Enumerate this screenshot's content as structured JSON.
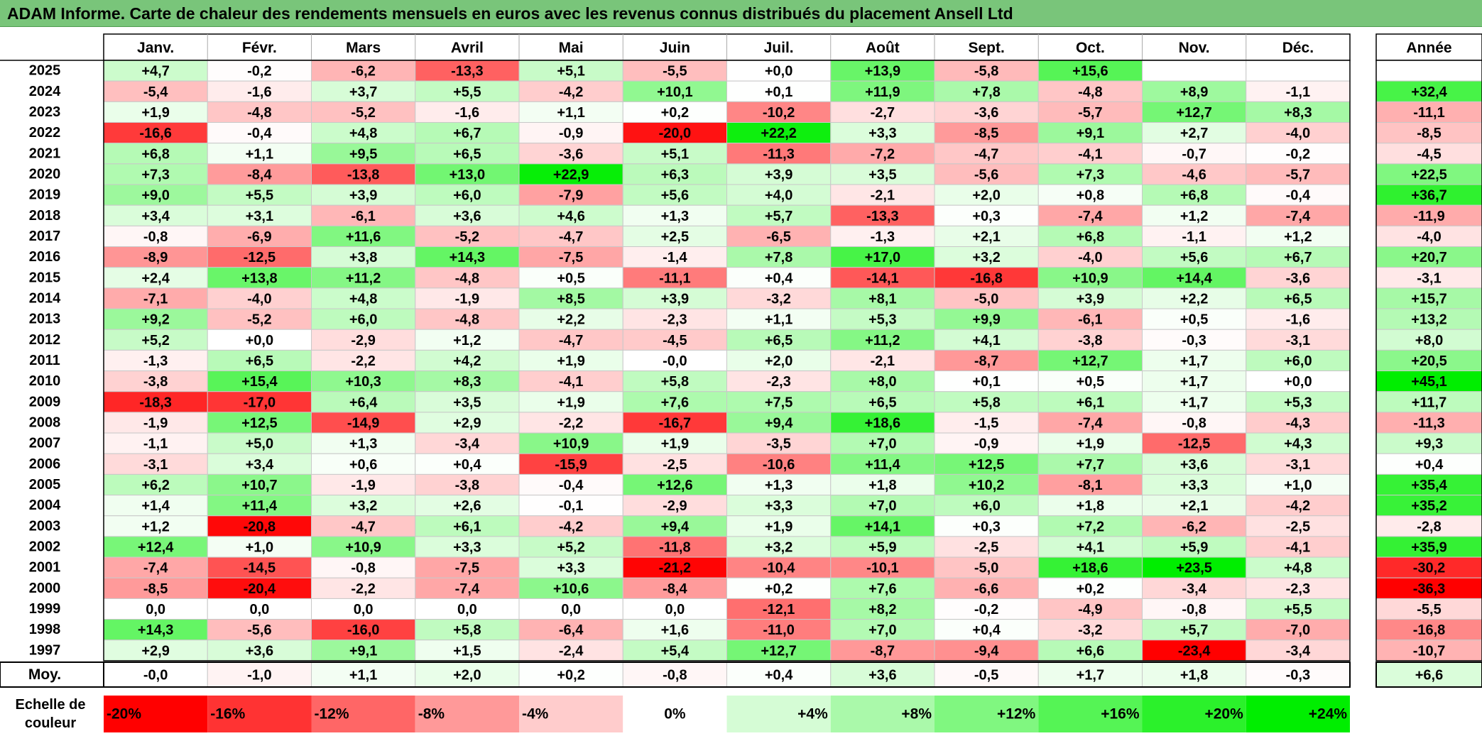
{
  "title": "ADAM Informe. Carte de chaleur des rendements mensuels en euros avec les revenus connus distribués du placement Ansell Ltd",
  "chart_data": {
    "type": "heatmap",
    "title": "ADAM Informe. Carte de chaleur des rendements mensuels en euros avec les revenus connus distribués du placement Ansell Ltd",
    "columns": [
      "Janv.",
      "Févr.",
      "Mars",
      "Avril",
      "Mai",
      "Juin",
      "Juil.",
      "Août",
      "Sept.",
      "Oct.",
      "Nov.",
      "Déc."
    ],
    "year_column_label": "Année",
    "rows": [
      {
        "year": "2025",
        "values": [
          "+4,7",
          "-0,2",
          "-6,2",
          "-13,3",
          "+5,1",
          "-5,5",
          "+0,0",
          "+13,9",
          "-5,8",
          "+15,6",
          "",
          ""
        ],
        "annual": ""
      },
      {
        "year": "2024",
        "values": [
          "-5,4",
          "-1,6",
          "+3,7",
          "+5,5",
          "-4,2",
          "+10,1",
          "+0,1",
          "+11,9",
          "+7,8",
          "-4,8",
          "+8,9",
          "-1,1"
        ],
        "annual": "+32,4"
      },
      {
        "year": "2023",
        "values": [
          "+1,9",
          "-4,8",
          "-5,2",
          "-1,6",
          "+1,1",
          "+0,2",
          "-10,2",
          "-2,7",
          "-3,6",
          "-5,7",
          "+12,7",
          "+8,3"
        ],
        "annual": "-11,1"
      },
      {
        "year": "2022",
        "values": [
          "-16,6",
          "-0,4",
          "+4,8",
          "+6,7",
          "-0,9",
          "-20,0",
          "+22,2",
          "+3,3",
          "-8,5",
          "+9,1",
          "+2,7",
          "-4,0"
        ],
        "annual": "-8,5"
      },
      {
        "year": "2021",
        "values": [
          "+6,8",
          "+1,1",
          "+9,5",
          "+6,5",
          "-3,6",
          "+5,1",
          "-11,3",
          "-7,2",
          "-4,7",
          "-4,1",
          "-0,7",
          "-0,2"
        ],
        "annual": "-4,5"
      },
      {
        "year": "2020",
        "values": [
          "+7,3",
          "-8,4",
          "-13,8",
          "+13,0",
          "+22,9",
          "+6,3",
          "+3,9",
          "+3,5",
          "-5,6",
          "+7,3",
          "-4,6",
          "-5,7"
        ],
        "annual": "+22,5"
      },
      {
        "year": "2019",
        "values": [
          "+9,0",
          "+5,5",
          "+3,9",
          "+6,0",
          "-7,9",
          "+5,6",
          "+4,0",
          "-2,1",
          "+2,0",
          "+0,8",
          "+6,8",
          "-0,4"
        ],
        "annual": "+36,7"
      },
      {
        "year": "2018",
        "values": [
          "+3,4",
          "+3,1",
          "-6,1",
          "+3,6",
          "+4,6",
          "+1,3",
          "+5,7",
          "-13,3",
          "+0,3",
          "-7,4",
          "+1,2",
          "-7,4"
        ],
        "annual": "-11,9"
      },
      {
        "year": "2017",
        "values": [
          "-0,8",
          "-6,9",
          "+11,6",
          "-5,2",
          "-4,7",
          "+2,5",
          "-6,5",
          "-1,3",
          "+2,1",
          "+6,8",
          "-1,1",
          "+1,2"
        ],
        "annual": "-4,0"
      },
      {
        "year": "2016",
        "values": [
          "-8,9",
          "-12,5",
          "+3,8",
          "+14,3",
          "-7,5",
          "-1,4",
          "+7,8",
          "+17,0",
          "+3,2",
          "-4,0",
          "+5,6",
          "+6,7"
        ],
        "annual": "+20,7"
      },
      {
        "year": "2015",
        "values": [
          "+2,4",
          "+13,8",
          "+11,2",
          "-4,8",
          "+0,5",
          "-11,1",
          "+0,4",
          "-14,1",
          "-16,8",
          "+10,9",
          "+14,4",
          "-3,6"
        ],
        "annual": "-3,1"
      },
      {
        "year": "2014",
        "values": [
          "-7,1",
          "-4,0",
          "+4,8",
          "-1,9",
          "+8,5",
          "+3,9",
          "-3,2",
          "+8,1",
          "-5,0",
          "+3,9",
          "+2,2",
          "+6,5"
        ],
        "annual": "+15,7"
      },
      {
        "year": "2013",
        "values": [
          "+9,2",
          "-5,2",
          "+6,0",
          "-4,8",
          "+2,2",
          "-2,3",
          "+1,1",
          "+5,3",
          "+9,9",
          "-6,1",
          "+0,5",
          "-1,6"
        ],
        "annual": "+13,2"
      },
      {
        "year": "2012",
        "values": [
          "+5,2",
          "+0,0",
          "-2,9",
          "+1,2",
          "-4,7",
          "-4,5",
          "+6,5",
          "+11,2",
          "+4,1",
          "-3,8",
          "-0,3",
          "-3,1"
        ],
        "annual": "+8,0"
      },
      {
        "year": "2011",
        "values": [
          "-1,3",
          "+6,5",
          "-2,2",
          "+4,2",
          "+1,9",
          "-0,0",
          "+2,0",
          "-2,1",
          "-8,7",
          "+12,7",
          "+1,7",
          "+6,0"
        ],
        "annual": "+20,5"
      },
      {
        "year": "2010",
        "values": [
          "-3,8",
          "+15,4",
          "+10,3",
          "+8,3",
          "-4,1",
          "+5,8",
          "-2,3",
          "+8,0",
          "+0,1",
          "+0,5",
          "+1,7",
          "+0,0"
        ],
        "annual": "+45,1"
      },
      {
        "year": "2009",
        "values": [
          "-18,3",
          "-17,0",
          "+6,4",
          "+3,5",
          "+1,9",
          "+7,6",
          "+7,5",
          "+6,5",
          "+5,8",
          "+6,1",
          "+1,7",
          "+5,3"
        ],
        "annual": "+11,7"
      },
      {
        "year": "2008",
        "values": [
          "-1,9",
          "+12,5",
          "-14,9",
          "+2,9",
          "-2,2",
          "-16,7",
          "+9,4",
          "+18,6",
          "-1,5",
          "-7,4",
          "-0,8",
          "-4,3"
        ],
        "annual": "-11,3"
      },
      {
        "year": "2007",
        "values": [
          "-1,1",
          "+5,0",
          "+1,3",
          "-3,4",
          "+10,9",
          "+1,9",
          "-3,5",
          "+7,0",
          "-0,9",
          "+1,9",
          "-12,5",
          "+4,3"
        ],
        "annual": "+9,3"
      },
      {
        "year": "2006",
        "values": [
          "-3,1",
          "+3,4",
          "+0,6",
          "+0,4",
          "-15,9",
          "-2,5",
          "-10,6",
          "+11,4",
          "+12,5",
          "+7,7",
          "+3,6",
          "-3,1"
        ],
        "annual": "+0,4"
      },
      {
        "year": "2005",
        "values": [
          "+6,2",
          "+10,7",
          "-1,9",
          "-3,8",
          "-0,4",
          "+12,6",
          "+1,3",
          "+1,8",
          "+10,2",
          "-8,1",
          "+3,3",
          "+1,0"
        ],
        "annual": "+35,4"
      },
      {
        "year": "2004",
        "values": [
          "+1,4",
          "+11,4",
          "+3,2",
          "+2,6",
          "-0,1",
          "-2,9",
          "+3,3",
          "+7,0",
          "+6,0",
          "+1,8",
          "+2,1",
          "-4,2"
        ],
        "annual": "+35,2"
      },
      {
        "year": "2003",
        "values": [
          "+1,2",
          "-20,8",
          "-4,7",
          "+6,1",
          "-4,2",
          "+9,4",
          "+1,9",
          "+14,1",
          "+0,3",
          "+7,2",
          "-6,2",
          "-2,5"
        ],
        "annual": "-2,8"
      },
      {
        "year": "2002",
        "values": [
          "+12,4",
          "+1,0",
          "+10,9",
          "+3,3",
          "+5,2",
          "-11,8",
          "+3,2",
          "+5,9",
          "-2,5",
          "+4,1",
          "+5,9",
          "-4,1"
        ],
        "annual": "+35,9"
      },
      {
        "year": "2001",
        "values": [
          "-7,4",
          "-14,5",
          "-0,8",
          "-7,5",
          "+3,3",
          "-21,2",
          "-10,4",
          "-10,1",
          "-5,0",
          "+18,6",
          "+23,5",
          "+4,8"
        ],
        "annual": "-30,2"
      },
      {
        "year": "2000",
        "values": [
          "-8,5",
          "-20,4",
          "-2,2",
          "-7,4",
          "+10,6",
          "-8,4",
          "+0,2",
          "+7,6",
          "-6,6",
          "+0,2",
          "-3,4",
          "-2,3"
        ],
        "annual": "-36,3"
      },
      {
        "year": "1999",
        "values": [
          "0,0",
          "0,0",
          "0,0",
          "0,0",
          "0,0",
          "0,0",
          "-12,1",
          "+8,2",
          "-0,2",
          "-4,9",
          "-0,8",
          "+5,5"
        ],
        "annual": "-5,5"
      },
      {
        "year": "1998",
        "values": [
          "+14,3",
          "-5,6",
          "-16,0",
          "+5,8",
          "-6,4",
          "+1,6",
          "-11,0",
          "+7,0",
          "+0,4",
          "-3,2",
          "+5,7",
          "-7,0"
        ],
        "annual": "-16,8"
      },
      {
        "year": "1997",
        "values": [
          "+2,9",
          "+3,6",
          "+9,1",
          "+1,5",
          "-2,4",
          "+5,4",
          "+12,7",
          "-8,7",
          "-9,4",
          "+6,6",
          "-23,4",
          "-3,4"
        ],
        "annual": "-10,7"
      }
    ],
    "average": {
      "label": "Moy.",
      "values": [
        "-0,0",
        "-1,0",
        "+1,1",
        "+2,0",
        "+0,2",
        "-0,8",
        "+0,4",
        "+3,6",
        "-0,5",
        "+1,7",
        "+1,8",
        "-0,3"
      ],
      "annual": "+6,6"
    },
    "scale": {
      "label_line1": "Echelle de",
      "label_line2": "couleur",
      "stops": [
        {
          "label": "-20%",
          "value": -20
        },
        {
          "label": "-16%",
          "value": -16
        },
        {
          "label": "-12%",
          "value": -12
        },
        {
          "label": "-8%",
          "value": -8
        },
        {
          "label": "-4%",
          "value": -4
        },
        {
          "label": "0%",
          "value": 0
        },
        {
          "label": "+4%",
          "value": 4
        },
        {
          "label": "+8%",
          "value": 8
        },
        {
          "label": "+12%",
          "value": 12
        },
        {
          "label": "+16%",
          "value": 16
        },
        {
          "label": "+20%",
          "value": 20
        },
        {
          "label": "+24%",
          "value": 24
        }
      ]
    },
    "colors": {
      "negative": "#ff0000",
      "neutral": "#ffffff",
      "positive": "#00ee00",
      "title_bar": "#79c57a"
    }
  }
}
